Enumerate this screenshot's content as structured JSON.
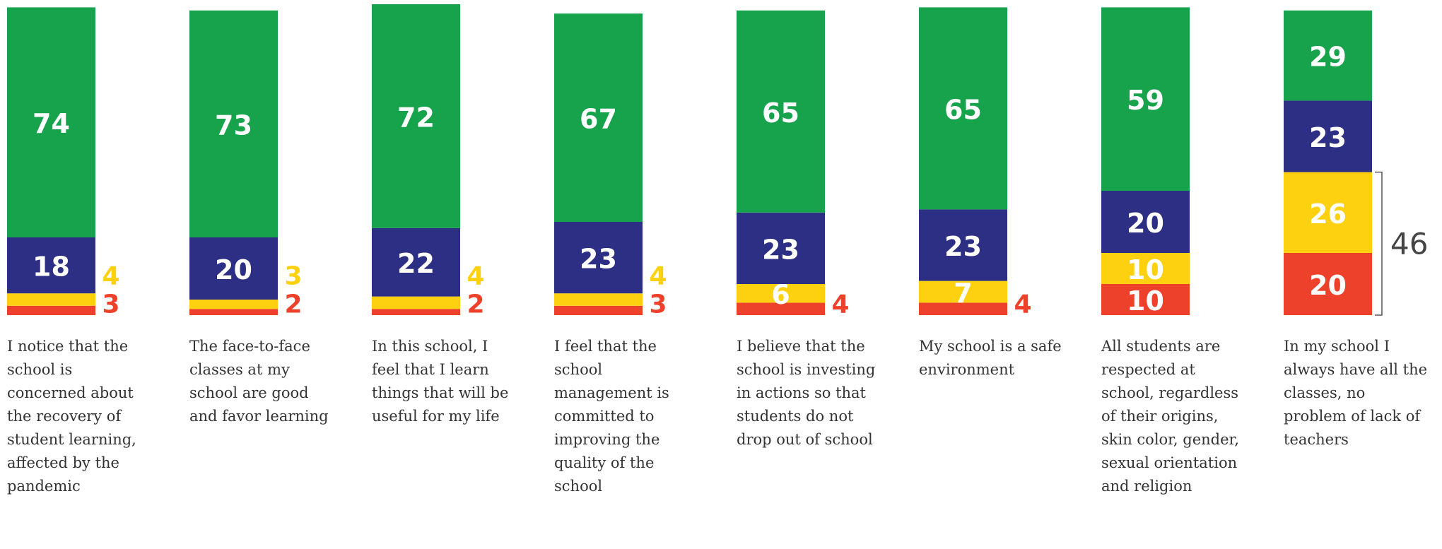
{
  "chart_data": {
    "type": "stacked-bar",
    "categories": [
      "I notice that the school is concerned about the recovery of student learning, affected by the pandemic",
      "The face-to-face classes at my school are good and favor learning",
      "In this school, I feel that I learn things that will be useful for my life",
      "I feel that the school management is committed to improving the quality of the school",
      "I believe that the school is investing in actions so that students do not drop out of school",
      "My school is a safe environment",
      "All students are respected at school, regardless of their origins, skin color, gender, sexual orientation and religion",
      "In my school I always have all the classes, no problem of lack of teachers"
    ],
    "series": [
      {
        "color": "#ee412c",
        "values": [
          3,
          2,
          2,
          3,
          4,
          4,
          10,
          20
        ]
      },
      {
        "color": "#fdd10f",
        "values": [
          4,
          3,
          4,
          4,
          6,
          7,
          10,
          26
        ]
      },
      {
        "color": "#2d2f84",
        "values": [
          18,
          20,
          22,
          23,
          23,
          23,
          20,
          23
        ]
      },
      {
        "color": "#17a34b",
        "values": [
          74,
          73,
          72,
          67,
          65,
          65,
          59,
          29
        ]
      }
    ],
    "ylim": [
      0,
      100
    ],
    "annotation": "46"
  }
}
